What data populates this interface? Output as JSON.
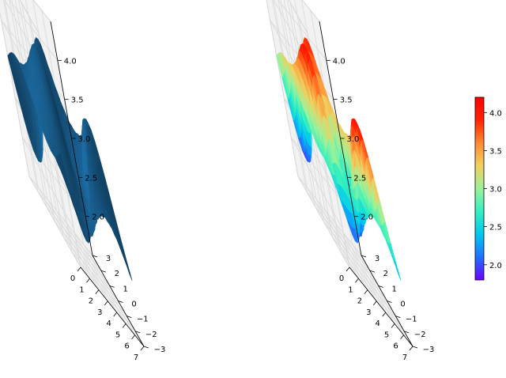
{
  "chart_data": [
    {
      "type": "surface3d",
      "surface_style": "solid",
      "color": "#1f77b4",
      "xlim": [
        0,
        7
      ],
      "ylim": [
        -3,
        3
      ],
      "zlim": [
        1.5,
        4.5
      ],
      "x_ticks": [
        "0",
        "1",
        "2",
        "3",
        "4",
        "5",
        "6",
        "7"
      ],
      "y_ticks": [
        "−3",
        "−2",
        "−1",
        "0",
        "1",
        "2",
        "3"
      ],
      "z_ticks": [
        "2.0",
        "2.5",
        "3.0",
        "3.5",
        "4.0"
      ],
      "grid": true
    },
    {
      "type": "surface3d",
      "surface_style": "colormap",
      "colormap": "rainbow",
      "colormap_stops": [
        "#6a00ff",
        "#1f6fff",
        "#00c8f0",
        "#33f0c0",
        "#9cf29a",
        "#f0d060",
        "#ff8a30",
        "#ff2200",
        "#ff0000"
      ],
      "xlim": [
        0,
        7
      ],
      "ylim": [
        -3,
        3
      ],
      "zlim": [
        1.5,
        4.5
      ],
      "x_ticks": [
        "0",
        "1",
        "2",
        "3",
        "4",
        "5",
        "6",
        "7"
      ],
      "y_ticks": [
        "−3",
        "−2",
        "−1",
        "0",
        "1",
        "2",
        "3"
      ],
      "z_ticks": [
        "2.0",
        "2.5",
        "3.0",
        "3.5",
        "4.0"
      ],
      "grid": true,
      "colorbar": {
        "range": [
          1.8,
          4.2
        ],
        "ticks": [
          "2.0",
          "2.5",
          "3.0",
          "3.5",
          "4.0"
        ]
      }
    }
  ]
}
